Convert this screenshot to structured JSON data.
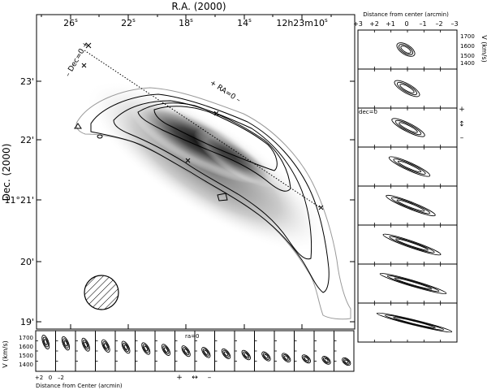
{
  "top_axis": {
    "title": "R.A. (2000)",
    "ticks": [
      "26",
      "22",
      "18",
      "14",
      "12h23m10"
    ],
    "seconds_mark": "s"
  },
  "left_axis": {
    "title": "Dec. (2000)",
    "ticks": [
      "23'",
      "22'",
      "11°21'",
      "20'",
      "19'"
    ]
  },
  "map_annotations": {
    "dec_axis_label": "– Dec=0 +",
    "ra_axis_label": "+ RA=0 –"
  },
  "right_panels": {
    "top_title": "Distance from center (arcmin)",
    "x_ticks": [
      "+3",
      "+2",
      "+1",
      "0",
      "–1",
      "–2",
      "–3"
    ],
    "y_label": "V (km/s)",
    "y_ticks": [
      "1700",
      "1600",
      "1500",
      "1400"
    ],
    "panel_label": "dec=0",
    "side_marks": [
      "+",
      "↔",
      "–"
    ],
    "panel_count": 8
  },
  "bottom_panels": {
    "y_label": "V (km/s)",
    "y_ticks": [
      "1700",
      "1600",
      "1500",
      "1400"
    ],
    "x_ticks": [
      "+2",
      "0",
      "–2"
    ],
    "x_title": "Distance from Center (arcmin)",
    "panel_label": "ra=0",
    "bottom_marks": [
      "+",
      "↔",
      "–"
    ],
    "panel_count": 16
  }
}
